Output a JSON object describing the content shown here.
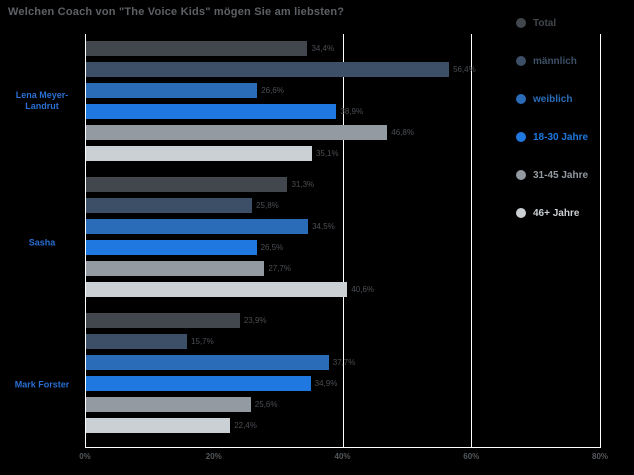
{
  "title": "Welchen Coach von \"The Voice Kids\" mögen Sie am liebsten?",
  "colors": {
    "background": "#000000",
    "title_text": "#5d6165",
    "axis_line": "#ffffff",
    "tick_text": "#54585c",
    "value_label_text": "#4a4e53",
    "category_label_text": "#2a6fd4"
  },
  "chart_data": {
    "type": "bar",
    "orientation": "horizontal",
    "title": "Welchen Coach von \"The Voice Kids\" mögen Sie am liebsten?",
    "categories": [
      "Lena Meyer-Landrut",
      "Sasha",
      "Mark Forster"
    ],
    "series": [
      {
        "name": "Total",
        "color": "#42474e",
        "values": [
          34.4,
          31.3,
          23.9
        ]
      },
      {
        "name": "männlich",
        "color": "#3c4f66",
        "values": [
          56.4,
          25.8,
          15.7
        ]
      },
      {
        "name": "weiblich",
        "color": "#2a6cb8",
        "values": [
          26.6,
          34.5,
          37.7
        ]
      },
      {
        "name": "18-30 Jahre",
        "color": "#1e78e0",
        "values": [
          38.9,
          26.5,
          34.9
        ]
      },
      {
        "name": "31-45 Jahre",
        "color": "#939aa1",
        "values": [
          46.8,
          27.7,
          25.6
        ]
      },
      {
        "name": "46+ Jahre",
        "color": "#cbd0d4",
        "values": [
          35.1,
          40.6,
          22.4
        ]
      }
    ],
    "xlim": [
      0,
      80
    ],
    "tick_values": [
      0,
      20,
      40,
      60,
      80
    ],
    "x_ticks": [
      "0%",
      "20%",
      "40%",
      "60%",
      "80%"
    ],
    "gridline_values": [
      40,
      60,
      80
    ],
    "value_label_format": "german-percent",
    "legend_position": "top-right",
    "grid": "vertical-white-on-black"
  }
}
